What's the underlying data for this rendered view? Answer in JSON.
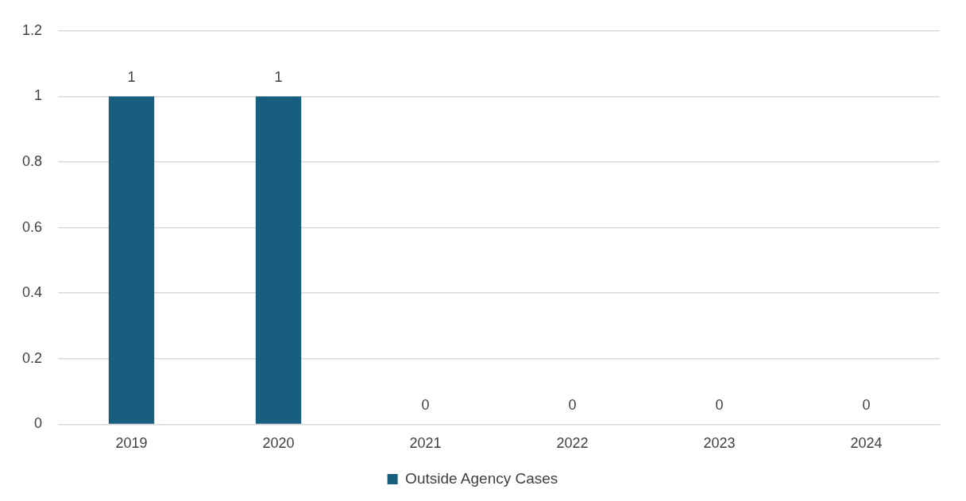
{
  "chart_data": {
    "type": "bar",
    "categories": [
      "2019",
      "2020",
      "2021",
      "2022",
      "2023",
      "2024"
    ],
    "series": [
      {
        "name": "Outside Agency Cases",
        "color": "#185f7f",
        "values": [
          1,
          1,
          0,
          0,
          0,
          0
        ]
      }
    ],
    "ylim": [
      0,
      1.2
    ],
    "yticks": [
      0,
      0.2,
      0.4,
      0.6,
      0.8,
      1,
      1.2
    ],
    "grid": "y",
    "legend": "bottom",
    "data_labels": true
  }
}
